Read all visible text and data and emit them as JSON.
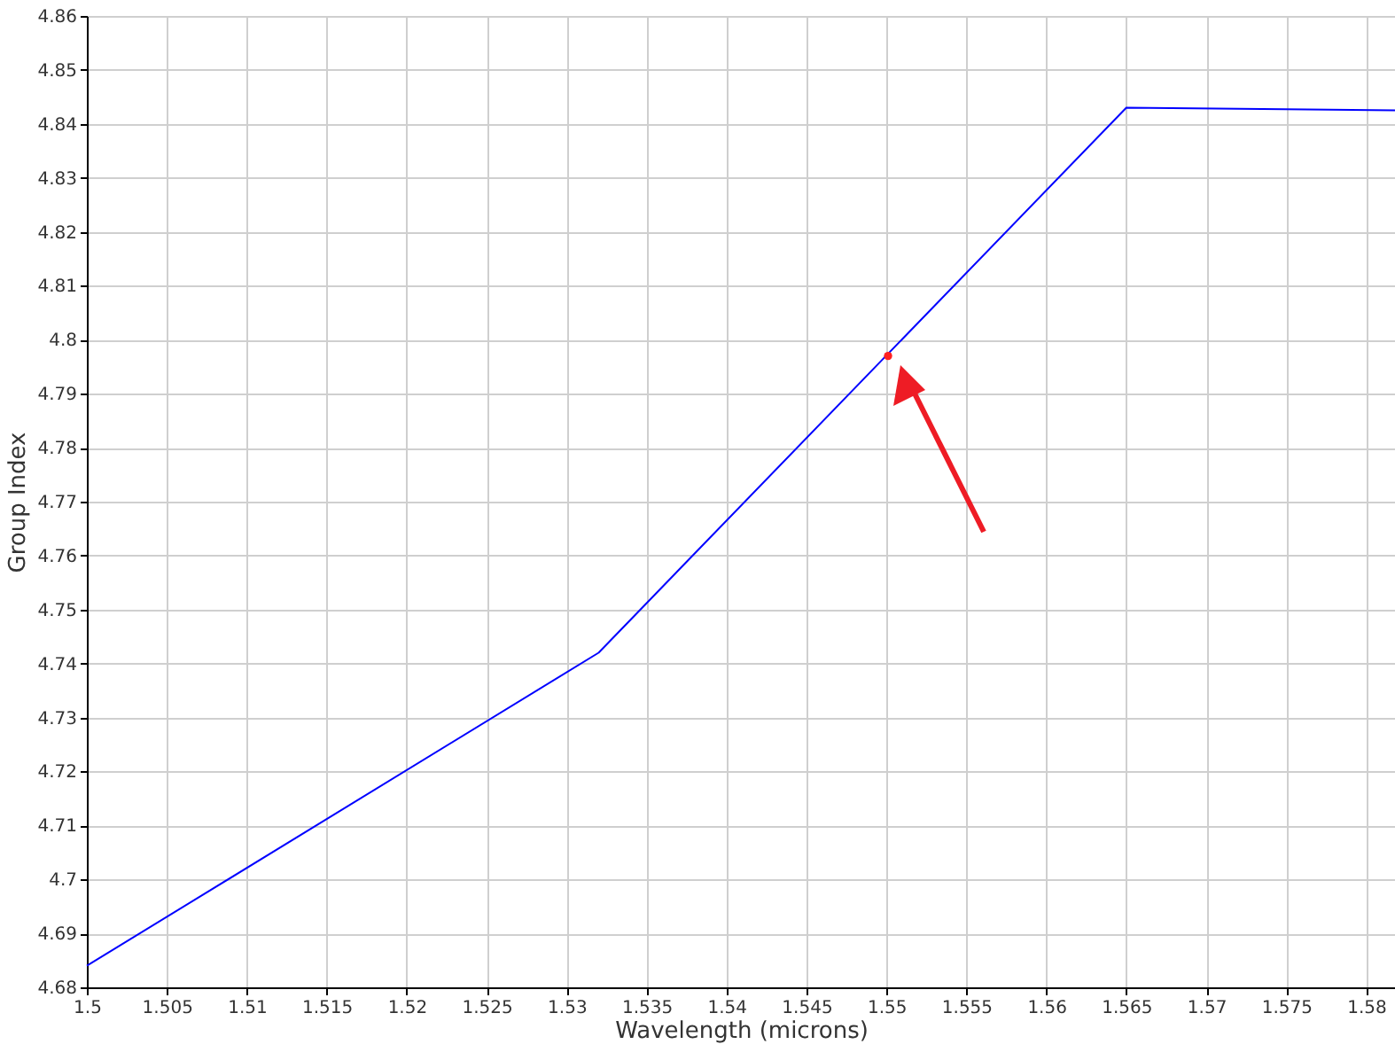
{
  "chart_data": {
    "type": "line",
    "xlabel": "Wavelength (microns)",
    "ylabel": "Group Index",
    "series": [
      {
        "color": "#0000ff",
        "x": [
          1.5,
          1.532,
          1.565,
          1.5818
        ],
        "values": [
          4.684,
          4.742,
          4.843,
          4.8425
        ]
      },
      {
        "type": "scatter",
        "color": "#ff2020",
        "x": [
          1.5501
        ],
        "values": [
          4.797
        ]
      }
    ],
    "xlim": [
      1.5,
      1.5818
    ],
    "xticks": [
      1.5,
      1.505,
      1.51,
      1.515,
      1.52,
      1.525,
      1.53,
      1.535,
      1.54,
      1.545,
      1.55,
      1.555,
      1.56,
      1.565,
      1.57,
      1.575,
      1.58
    ],
    "ylim": [
      4.68,
      4.86
    ],
    "yticks": [
      4.68,
      4.69,
      4.7,
      4.71,
      4.72,
      4.73,
      4.74,
      4.75,
      4.76,
      4.77,
      4.78,
      4.79,
      4.8,
      4.81,
      4.82,
      4.83,
      4.84,
      4.85,
      4.86
    ],
    "grid": true,
    "line_style": "solid"
  }
}
